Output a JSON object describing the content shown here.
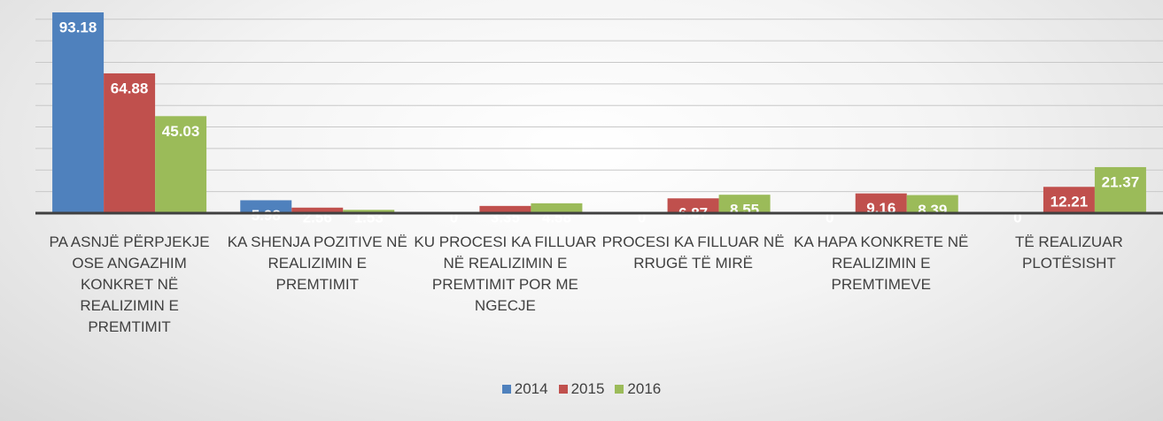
{
  "chart_data": {
    "type": "bar",
    "categories": [
      "PA ASNJË PËRPJEKJE OSE ANGAZHIM KONKRET NË REALIZIMIN E PREMTIMIT",
      "KA SHENJA POZITIVE NË REALIZIMIN E PREMTIMIT",
      "KU PROCESI KA FILLUAR NË REALIZIMIN E PREMTIMIT POR ME NGECJE",
      "PROCESI KA  FILLUAR NË RRUGË TË MIRË",
      "KA HAPA KONKRETE NË REALIZIMIN E PREMTIMEVE",
      "TË REALIZUAR PLOTËSISHT"
    ],
    "series": [
      {
        "name": "2014",
        "color": "#4f81bd",
        "values": [
          93.18,
          5.98,
          0,
          0,
          0,
          0
        ]
      },
      {
        "name": "2015",
        "color": "#c0504d",
        "values": [
          64.88,
          2.56,
          3.35,
          6.87,
          9.16,
          12.21
        ]
      },
      {
        "name": "2016",
        "color": "#9bbb59",
        "values": [
          45.03,
          1.53,
          4.58,
          8.55,
          8.39,
          21.37
        ]
      }
    ],
    "ylim": [
      0,
      100
    ],
    "yticks": [
      0,
      10,
      20,
      30,
      40,
      50,
      60,
      70,
      80,
      90,
      100
    ],
    "grid": true
  }
}
